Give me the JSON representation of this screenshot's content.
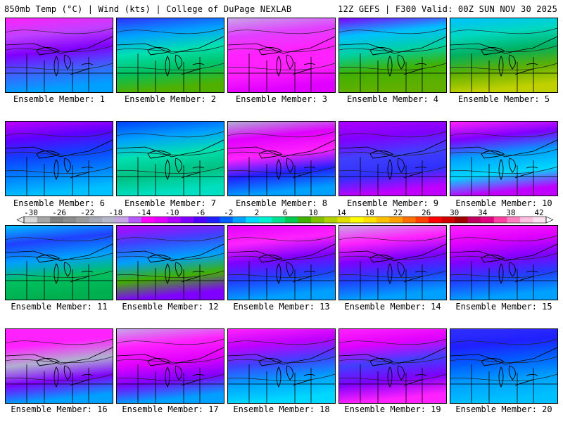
{
  "header": {
    "left": "850mb Temp (°C) | Wind (kts) | College of DuPage NEXLAB",
    "right": "12Z GEFS | F300 Valid: 00Z SUN NOV 30 2025"
  },
  "colorbar": {
    "labels": [
      "-30",
      "-26",
      "-22",
      "-18",
      "-14",
      "-10",
      "-6",
      "-2",
      "2",
      "6",
      "10",
      "14",
      "18",
      "22",
      "26",
      "30",
      "34",
      "38",
      "42"
    ],
    "colors": [
      "#d9d9d9",
      "#a6a6a6",
      "#7f7f7f",
      "#8c8c8c",
      "#9b9b9b",
      "#a8a8b8",
      "#b7b7cc",
      "#c8a3e6",
      "#b45aff",
      "#ff00ff",
      "#e000ff",
      "#b000ff",
      "#8000ff",
      "#5000ff",
      "#2020ff",
      "#0060ff",
      "#00a0ff",
      "#00d8ff",
      "#00f0d0",
      "#00e090",
      "#00c850",
      "#40b000",
      "#80c000",
      "#b0d000",
      "#e0e000",
      "#ffff00",
      "#ffe000",
      "#ffc000",
      "#ffa000",
      "#ff7000",
      "#ff4000",
      "#ff0000",
      "#d00000",
      "#a00000",
      "#c00060",
      "#e00080",
      "#ff40a0",
      "#ff80c0",
      "#ffc0e0",
      "#ffe0f0"
    ]
  },
  "members": [
    {
      "label": "Ensemble Member: 1",
      "colors": [
        "#ff22ff",
        "#c040ff",
        "#8000ff",
        "#4060ff",
        "#00a0ff"
      ]
    },
    {
      "label": "Ensemble Member: 2",
      "colors": [
        "#3030ff",
        "#00a0ff",
        "#00e0b0",
        "#00c060",
        "#50b000"
      ]
    },
    {
      "label": "Ensemble Member: 3",
      "colors": [
        "#c8a3e6",
        "#e040ff",
        "#ff22ff",
        "#ff22ff",
        "#e000ff"
      ]
    },
    {
      "label": "Ensemble Member: 4",
      "colors": [
        "#8000ff",
        "#00c0ff",
        "#00d0a0",
        "#40b000",
        "#60b000"
      ]
    },
    {
      "label": "Ensemble Member: 5",
      "colors": [
        "#00c0ff",
        "#00d8c0",
        "#00b060",
        "#60b000",
        "#c0d000"
      ]
    },
    {
      "label": "Ensemble Member: 6",
      "colors": [
        "#c000ff",
        "#6000ff",
        "#1040ff",
        "#0080ff",
        "#00c0ff"
      ]
    },
    {
      "label": "Ensemble Member: 7",
      "colors": [
        "#0040ff",
        "#00a0ff",
        "#00e0b0",
        "#00c080",
        "#00e0c0"
      ]
    },
    {
      "label": "Ensemble Member: 8",
      "colors": [
        "#b0b0d0",
        "#e000ff",
        "#ff22ff",
        "#2020ff",
        "#00a0ff"
      ]
    },
    {
      "label": "Ensemble Member: 9",
      "colors": [
        "#b000ff",
        "#8000ff",
        "#4040ff",
        "#3030ff",
        "#c000ff"
      ]
    },
    {
      "label": "Ensemble Member: 10",
      "colors": [
        "#ff22ff",
        "#8000ff",
        "#00a0ff",
        "#00d8ff",
        "#c000ff"
      ]
    },
    {
      "label": "Ensemble Member: 11",
      "colors": [
        "#00c0ff",
        "#2040ff",
        "#00a0ff",
        "#00c060",
        "#00b050"
      ]
    },
    {
      "label": "Ensemble Member: 12",
      "colors": [
        "#c000ff",
        "#4040ff",
        "#00a0ff",
        "#40b000",
        "#8000ff"
      ]
    },
    {
      "label": "Ensemble Member: 13",
      "colors": [
        "#e000ff",
        "#ff22ff",
        "#8000ff",
        "#2040ff",
        "#00a0ff"
      ]
    },
    {
      "label": "Ensemble Member: 14",
      "colors": [
        "#c8a3e6",
        "#ff22ff",
        "#8000ff",
        "#2040ff",
        "#00a0ff"
      ]
    },
    {
      "label": "Ensemble Member: 15",
      "colors": [
        "#ff22ff",
        "#e000ff",
        "#8000ff",
        "#2040ff",
        "#00a0ff"
      ]
    },
    {
      "label": "Ensemble Member: 16",
      "colors": [
        "#ff22ff",
        "#ff22ff",
        "#b0b0d0",
        "#8000ff",
        "#00a0ff"
      ]
    },
    {
      "label": "Ensemble Member: 17",
      "colors": [
        "#c8a3e6",
        "#ff22ff",
        "#e000ff",
        "#8000ff",
        "#00a0ff"
      ]
    },
    {
      "label": "Ensemble Member: 18",
      "colors": [
        "#ff22ff",
        "#c000ff",
        "#4040ff",
        "#00a0ff",
        "#00d8ff"
      ]
    },
    {
      "label": "Ensemble Member: 19",
      "colors": [
        "#ff22ff",
        "#e000ff",
        "#4040ff",
        "#8000ff",
        "#ff22ff"
      ]
    },
    {
      "label": "Ensemble Member: 20",
      "colors": [
        "#3030ff",
        "#2020ff",
        "#0060ff",
        "#00a0ff",
        "#00c0ff"
      ]
    }
  ]
}
